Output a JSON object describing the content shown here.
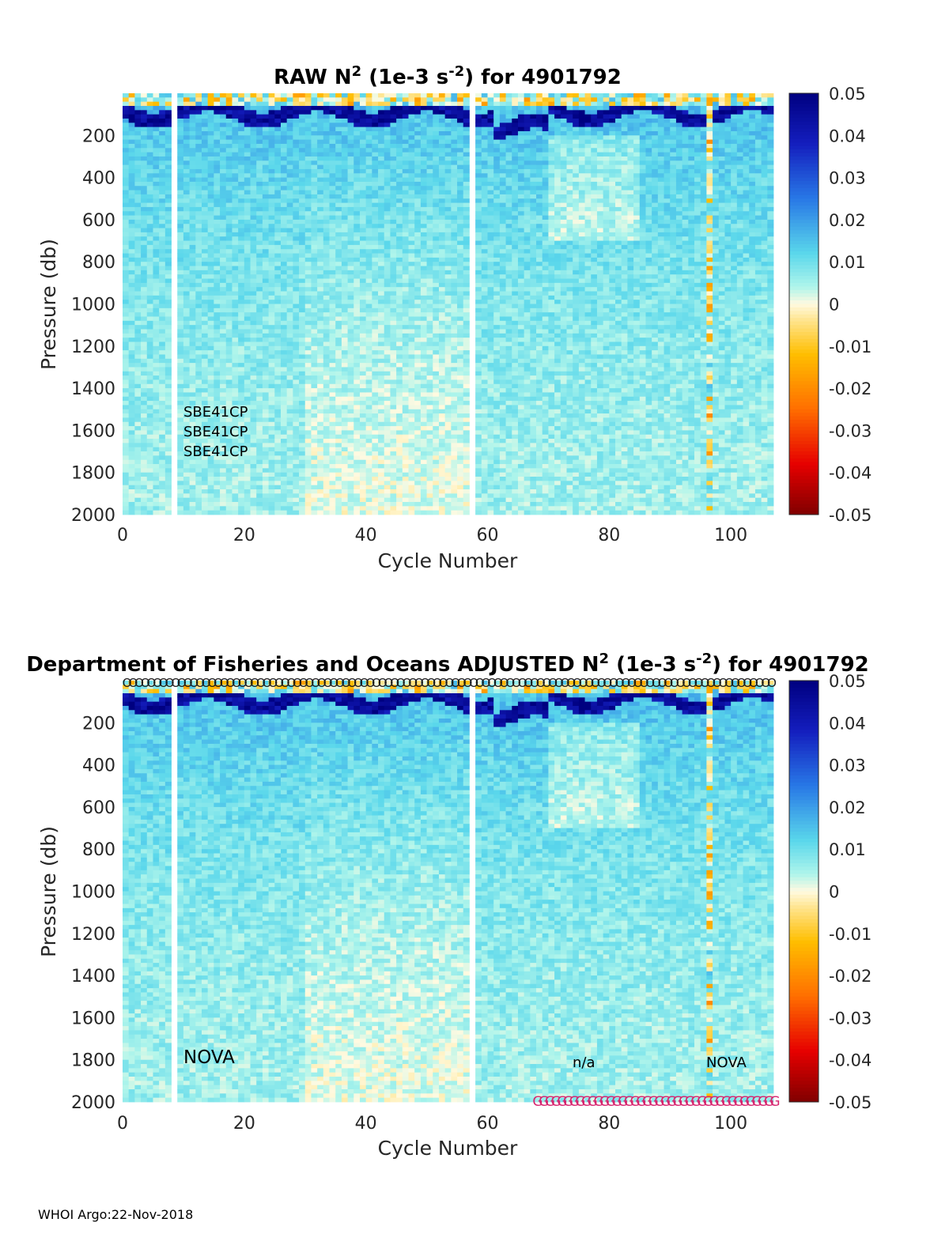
{
  "chart_data": [
    {
      "type": "heatmap",
      "title": "RAW N2 (1e-3 s-2) for 4901792",
      "title_parts": {
        "prefix": "RAW N",
        "sup1": "2",
        "mid": " (1e-3 s",
        "sup2": "-2",
        "suffix": ") for 4901792"
      },
      "xlabel": "Cycle Number",
      "ylabel": "Pressure (db)",
      "xlim": [
        0,
        107
      ],
      "ylim": [
        2000,
        0
      ],
      "x_ticks": [
        "0",
        "20",
        "40",
        "60",
        "80",
        "100"
      ],
      "y_ticks": [
        "200",
        "400",
        "600",
        "800",
        "1000",
        "1200",
        "1400",
        "1600",
        "1800",
        "2000"
      ],
      "colorbar": {
        "range": [
          -0.05,
          0.05
        ],
        "ticks": [
          "0.05",
          "0.04",
          "0.03",
          "0.02",
          "0.01",
          "0",
          "-0.01",
          "-0.02",
          "-0.03",
          "-0.04",
          "-0.05"
        ]
      },
      "missing_cycles": [
        8,
        57
      ],
      "annotations": [
        "SBE41CP",
        "SBE41CP",
        "SBE41CP"
      ]
    },
    {
      "type": "heatmap",
      "title": "Department of Fisheries and Oceans  ADJUSTED N2 (1e-3 s-2) for 4901792",
      "title_parts": {
        "prefix": "Department of Fisheries and Oceans  ADJUSTED N",
        "sup1": "2",
        "mid": " (1e-3 s",
        "sup2": "-2",
        "suffix": ") for 4901792"
      },
      "xlabel": "Cycle Number",
      "ylabel": "Pressure (db)",
      "xlim": [
        0,
        107
      ],
      "ylim": [
        2000,
        0
      ],
      "x_ticks": [
        "0",
        "20",
        "40",
        "60",
        "80",
        "100"
      ],
      "y_ticks": [
        "200",
        "400",
        "600",
        "800",
        "1000",
        "1200",
        "1400",
        "1600",
        "1800",
        "2000"
      ],
      "colorbar": {
        "range": [
          -0.05,
          0.05
        ],
        "ticks": [
          "0.05",
          "0.04",
          "0.03",
          "0.02",
          "0.01",
          "0",
          "-0.01",
          "-0.02",
          "-0.03",
          "-0.04",
          "-0.05"
        ]
      },
      "missing_cycles": [
        8,
        57
      ],
      "annotations": [
        "NOVA",
        "n/a",
        "NOVA"
      ],
      "qc_markers": {
        "top_symbol": "O",
        "top_cycles": [
          1,
          107
        ],
        "bottom_symbol": "G",
        "bottom_cycles": [
          68,
          107
        ]
      }
    }
  ],
  "footer": "WHOI Argo:22-Nov-2018"
}
